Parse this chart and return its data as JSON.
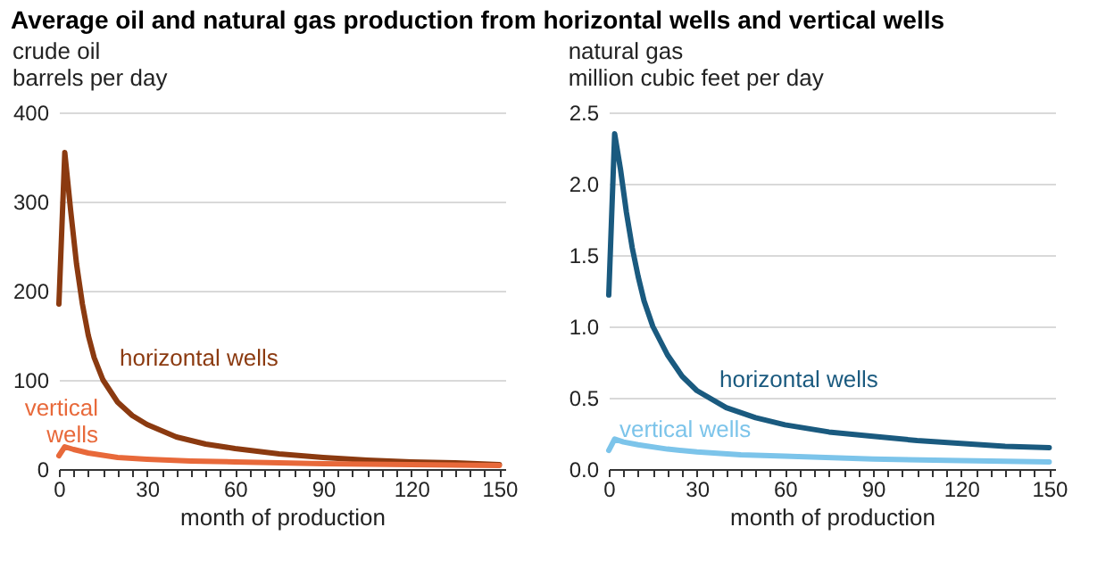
{
  "chart_data": [
    {
      "type": "line",
      "title": "Average oil and natural gas production from horizontal wells and vertical wells",
      "ylabel": "crude oil\nbarrels per day",
      "xlabel": "month of production",
      "xlim": [
        0,
        152
      ],
      "ylim": [
        0,
        400
      ],
      "xticks": [
        0,
        {
          "value": 5,
          "label": null
        },
        {
          "value": 10,
          "label": null
        },
        {
          "value": 15,
          "label": null
        },
        {
          "value": 20,
          "label": null
        },
        {
          "value": 25,
          "label": null
        },
        30,
        {
          "value": 35,
          "label": null
        },
        {
          "value": 40,
          "label": null
        },
        {
          "value": 45,
          "label": null
        },
        {
          "value": 50,
          "label": null
        },
        {
          "value": 55,
          "label": null
        },
        60,
        {
          "value": 65,
          "label": null
        },
        {
          "value": 70,
          "label": null
        },
        {
          "value": 75,
          "label": null
        },
        {
          "value": 80,
          "label": null
        },
        {
          "value": 85,
          "label": null
        },
        90,
        {
          "value": 95,
          "label": null
        },
        {
          "value": 100,
          "label": null
        },
        {
          "value": 105,
          "label": null
        },
        {
          "value": 110,
          "label": null
        },
        {
          "value": 115,
          "label": null
        },
        120,
        {
          "value": 125,
          "label": null
        },
        {
          "value": 130,
          "label": null
        },
        {
          "value": 135,
          "label": null
        },
        {
          "value": 140,
          "label": null
        },
        {
          "value": 145,
          "label": null
        },
        150
      ],
      "yticks": [
        0,
        100,
        200,
        300,
        400
      ],
      "grid": "y",
      "marker": "none",
      "line_style": "solid",
      "series": [
        {
          "name": "horizontal wells",
          "color": "#8b3a10",
          "x": [
            0,
            2,
            4,
            6,
            8,
            10,
            12,
            15,
            20,
            25,
            30,
            40,
            50,
            60,
            75,
            90,
            105,
            120,
            135,
            150
          ],
          "values": [
            185,
            355,
            290,
            230,
            185,
            150,
            125,
            100,
            75,
            60,
            50,
            36,
            28,
            23,
            17,
            13,
            10,
            8,
            7,
            5
          ]
        },
        {
          "name": "vertical wells",
          "color": "#e8693a",
          "x": [
            0,
            2,
            5,
            10,
            20,
            30,
            45,
            60,
            90,
            120,
            150
          ],
          "values": [
            15,
            25,
            22,
            18,
            13,
            11,
            9,
            8,
            6,
            5,
            4
          ]
        }
      ]
    },
    {
      "type": "line",
      "ylabel": "natural gas\nmillion cubic feet per day",
      "xlabel": "month of production",
      "xlim": [
        0,
        152
      ],
      "ylim": [
        0,
        2.5
      ],
      "xticks": [
        0,
        {
          "value": 5,
          "label": null
        },
        {
          "value": 10,
          "label": null
        },
        {
          "value": 15,
          "label": null
        },
        {
          "value": 20,
          "label": null
        },
        {
          "value": 25,
          "label": null
        },
        30,
        {
          "value": 35,
          "label": null
        },
        {
          "value": 40,
          "label": null
        },
        {
          "value": 45,
          "label": null
        },
        {
          "value": 50,
          "label": null
        },
        {
          "value": 55,
          "label": null
        },
        60,
        {
          "value": 65,
          "label": null
        },
        {
          "value": 70,
          "label": null
        },
        {
          "value": 75,
          "label": null
        },
        {
          "value": 80,
          "label": null
        },
        {
          "value": 85,
          "label": null
        },
        90,
        {
          "value": 95,
          "label": null
        },
        {
          "value": 100,
          "label": null
        },
        {
          "value": 105,
          "label": null
        },
        {
          "value": 110,
          "label": null
        },
        {
          "value": 115,
          "label": null
        },
        120,
        {
          "value": 125,
          "label": null
        },
        {
          "value": 130,
          "label": null
        },
        {
          "value": 135,
          "label": null
        },
        {
          "value": 140,
          "label": null
        },
        {
          "value": 145,
          "label": null
        },
        150
      ],
      "yticks": [
        {
          "value": 0,
          "label": "0.0"
        },
        0.5,
        {
          "value": 1,
          "label": "1.0"
        },
        1.5,
        {
          "value": 2,
          "label": "2.0"
        },
        2.5
      ],
      "grid": "y",
      "marker": "none",
      "line_style": "solid",
      "series": [
        {
          "name": "horizontal wells",
          "color": "#1a5a7f",
          "x": [
            0,
            2,
            4,
            6,
            8,
            10,
            12,
            15,
            20,
            25,
            30,
            40,
            50,
            60,
            75,
            90,
            105,
            120,
            135,
            150
          ],
          "values": [
            1.22,
            2.35,
            2.1,
            1.8,
            1.55,
            1.35,
            1.18,
            1.0,
            0.8,
            0.65,
            0.55,
            0.43,
            0.36,
            0.31,
            0.26,
            0.23,
            0.2,
            0.18,
            0.16,
            0.15
          ]
        },
        {
          "name": "vertical wells",
          "color": "#7cc4ea",
          "x": [
            0,
            2,
            5,
            10,
            20,
            30,
            45,
            60,
            90,
            120,
            150
          ],
          "values": [
            0.13,
            0.21,
            0.19,
            0.17,
            0.14,
            0.12,
            0.1,
            0.09,
            0.07,
            0.06,
            0.05
          ]
        }
      ]
    }
  ]
}
